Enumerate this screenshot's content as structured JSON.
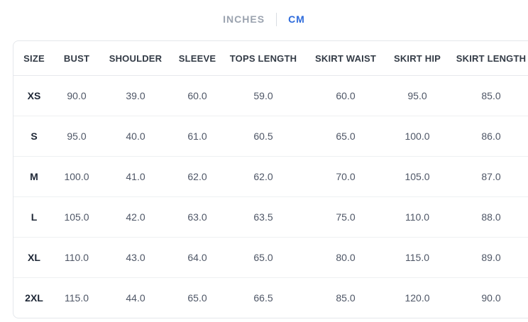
{
  "unit_tabs": {
    "options": [
      {
        "label": "INCHES",
        "active": false
      },
      {
        "label": "CM",
        "active": true
      }
    ]
  },
  "colors": {
    "accent_blue": "#2e6bdb",
    "inactive_tab_gray": "#9ba3af",
    "table_border": "#e4e7eb",
    "row_divider": "#eef0f2",
    "header_text": "#333b46",
    "cell_text": "#4e5666",
    "size_label_text": "#1e2736"
  },
  "size_chart": {
    "columns": [
      "SIZE",
      "BUST",
      "SHOULDER",
      "SLEEVE",
      "TOPS LENGTH",
      "SKIRT WAIST",
      "SKIRT HIP",
      "SKIRT LENGTH"
    ],
    "rows": [
      {
        "size": "XS",
        "values": [
          "90.0",
          "39.0",
          "60.0",
          "59.0",
          "60.0",
          "95.0",
          "85.0"
        ]
      },
      {
        "size": "S",
        "values": [
          "95.0",
          "40.0",
          "61.0",
          "60.5",
          "65.0",
          "100.0",
          "86.0"
        ]
      },
      {
        "size": "M",
        "values": [
          "100.0",
          "41.0",
          "62.0",
          "62.0",
          "70.0",
          "105.0",
          "87.0"
        ]
      },
      {
        "size": "L",
        "values": [
          "105.0",
          "42.0",
          "63.0",
          "63.5",
          "75.0",
          "110.0",
          "88.0"
        ]
      },
      {
        "size": "XL",
        "values": [
          "110.0",
          "43.0",
          "64.0",
          "65.0",
          "80.0",
          "115.0",
          "89.0"
        ]
      },
      {
        "size": "2XL",
        "values": [
          "115.0",
          "44.0",
          "65.0",
          "66.5",
          "85.0",
          "120.0",
          "90.0"
        ]
      }
    ]
  }
}
